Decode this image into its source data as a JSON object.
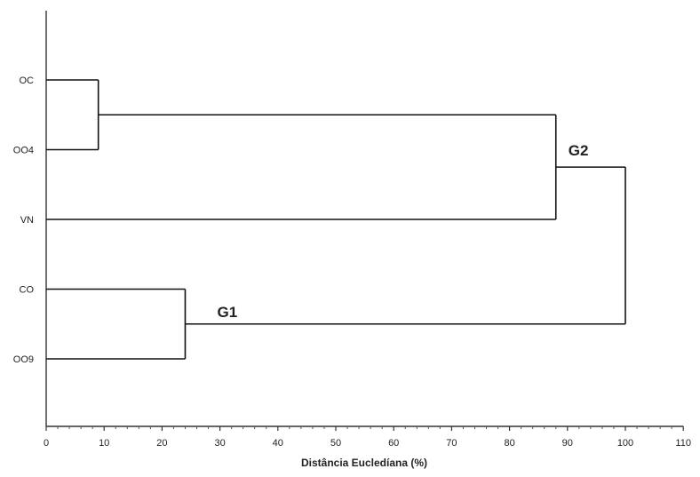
{
  "chart_data": {
    "type": "dendrogram",
    "xlabel": "Distância Eucledíana (%)",
    "xlim": [
      0,
      110
    ],
    "xticks": [
      0,
      10,
      20,
      30,
      40,
      50,
      60,
      70,
      80,
      90,
      100,
      110
    ],
    "tick_labels": [
      "0",
      "10",
      "20",
      "30",
      "40",
      "50",
      "60",
      "70",
      "80",
      "90",
      "100",
      "110"
    ],
    "leaves": [
      "OC",
      "OO4",
      "VN",
      "CO",
      "OO9"
    ],
    "merges": [
      {
        "a": "OC",
        "b": "OO4",
        "height": 9
      },
      {
        "a": "CO",
        "b": "OO9",
        "height": 24
      },
      {
        "a": "OC+OO4",
        "b": "VN",
        "height": 88
      },
      {
        "a": "OC+OO4+VN",
        "b": "CO+OO9",
        "height": 100
      }
    ],
    "group_labels": [
      {
        "text": "G2",
        "near_height": 88
      },
      {
        "text": "G1",
        "near_height": 24
      }
    ]
  }
}
